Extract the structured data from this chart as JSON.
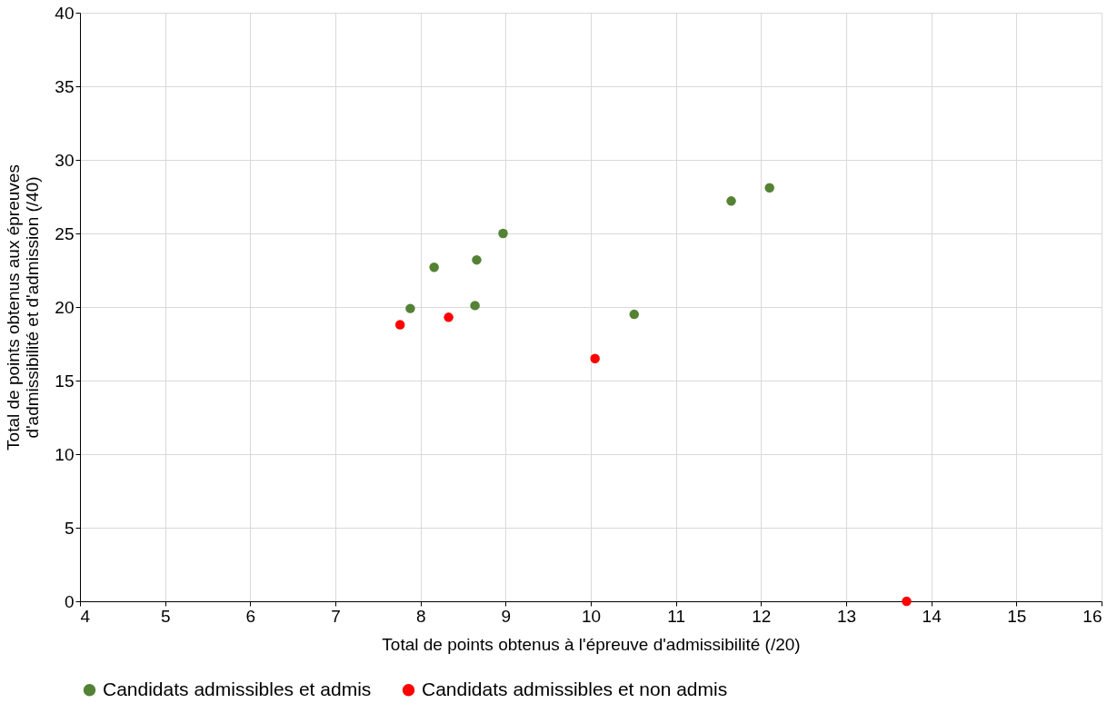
{
  "chart_data": {
    "type": "scatter",
    "xlabel": "Total de points obtenus à l'épreuve d'admissibilité (/20)",
    "ylabel": "Total de points obtenus aux épreuves\nd'admissibilité et d'admission (/40)",
    "series": [
      {
        "name": "Candidats admissibles et admis",
        "color": "#548235",
        "x": [
          7.88,
          8.16,
          8.66,
          8.64,
          8.97,
          10.51,
          11.65,
          12.1
        ],
        "values": [
          19.9,
          22.7,
          23.2,
          20.1,
          25.0,
          19.5,
          27.2,
          28.1
        ]
      },
      {
        "name": "Candidats admissibles et non admis",
        "color": "#ff0000",
        "x": [
          7.76,
          8.33,
          10.05,
          13.71
        ],
        "values": [
          18.8,
          19.3,
          16.5,
          0
        ]
      }
    ],
    "xlim": [
      4,
      16
    ],
    "xticks": [
      4,
      5,
      6,
      7,
      8,
      9,
      10,
      11,
      12,
      13,
      14,
      15,
      16
    ],
    "ylim": [
      0,
      40
    ],
    "yticks": [
      0,
      5,
      10,
      15,
      20,
      25,
      30,
      35,
      40
    ],
    "grid": true,
    "legend": "bottom",
    "marker": "circle"
  }
}
